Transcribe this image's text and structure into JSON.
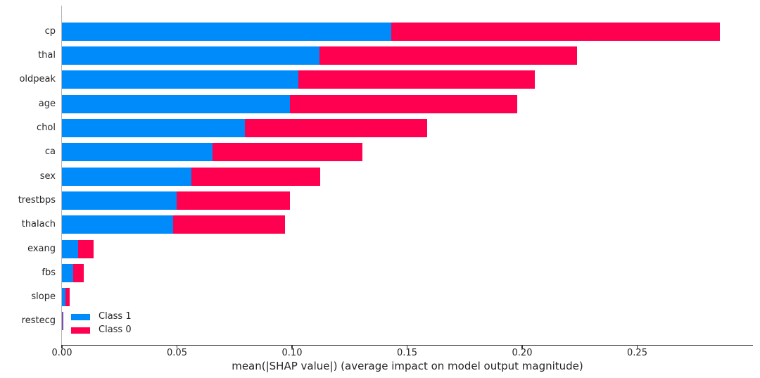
{
  "chart_data": {
    "type": "bar",
    "orientation": "horizontal",
    "stacked": true,
    "title": "",
    "categories": [
      "cp",
      "thal",
      "oldpeak",
      "age",
      "chol",
      "ca",
      "sex",
      "trestbps",
      "thalach",
      "exang",
      "fbs",
      "slope",
      "restecg"
    ],
    "series": [
      {
        "name": "Class 1",
        "color": "#008bfb",
        "values": [
          0.143,
          0.112,
          0.1026,
          0.099,
          0.0795,
          0.0654,
          0.0563,
          0.0497,
          0.0482,
          0.0069,
          0.0049,
          0.0015,
          0.0002
        ]
      },
      {
        "name": "Class 0",
        "color": "#ff0051",
        "values": [
          0.1428,
          0.1118,
          0.103,
          0.099,
          0.0791,
          0.0652,
          0.056,
          0.0495,
          0.0486,
          0.0069,
          0.0047,
          0.0018,
          0.0002
        ]
      }
    ],
    "xlabel": "mean(|SHAP value|) (average impact on model output magnitude)",
    "xticks": [
      0.0,
      0.05,
      0.1,
      0.15,
      0.2,
      0.25
    ],
    "xtick_labels": [
      "0.00",
      "0.05",
      "0.10",
      "0.15",
      "0.20",
      "0.25"
    ],
    "xlim": [
      0,
      0.3003
    ],
    "grid": false,
    "legend_position": "lower left",
    "spines": {
      "top": false,
      "right": false,
      "left": true,
      "bottom": true
    }
  }
}
